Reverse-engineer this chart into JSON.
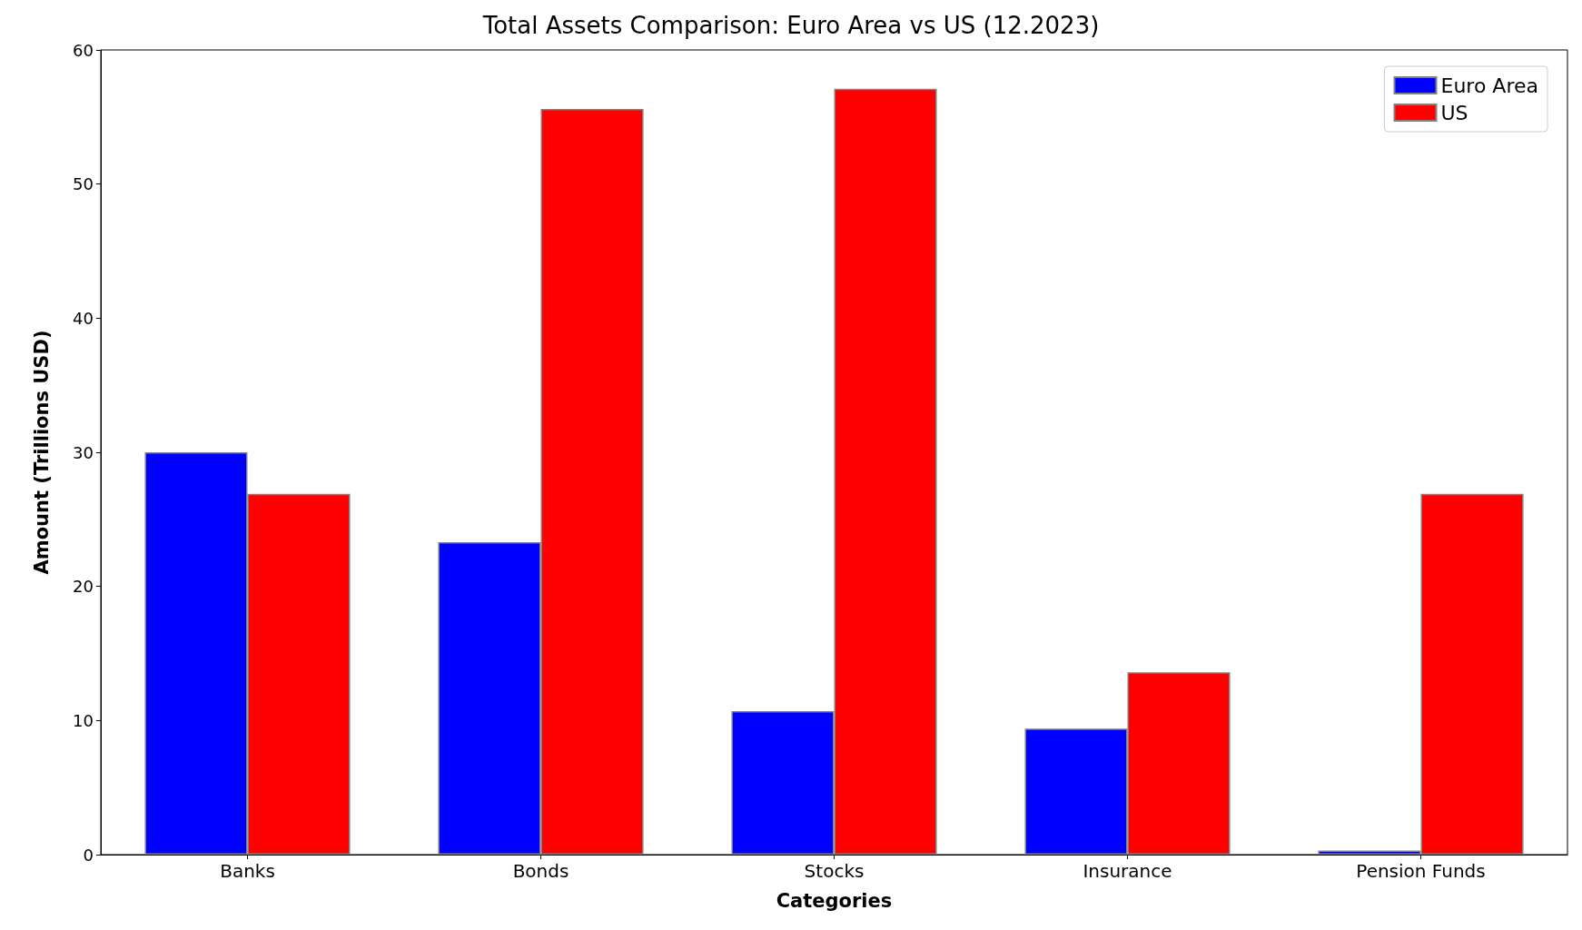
{
  "chart_data": {
    "type": "bar",
    "title": "Total Assets Comparison: Euro Area vs US (12.2023)",
    "xlabel": "Categories",
    "ylabel": "Amount (Trillions USD)",
    "categories": [
      "Banks",
      "Bonds",
      "Stocks",
      "Insurance",
      "Pension Funds"
    ],
    "series": [
      {
        "name": "Euro Area",
        "color": "#0000ff",
        "values": [
          30.0,
          23.3,
          10.7,
          9.4,
          0.3
        ]
      },
      {
        "name": "US",
        "color": "#ff0000",
        "values": [
          26.9,
          55.6,
          57.1,
          13.6,
          26.9
        ]
      }
    ],
    "ylim": [
      0,
      60
    ],
    "yticks": [
      0,
      10,
      20,
      30,
      40,
      50,
      60
    ],
    "grid": false,
    "legend": "top right"
  }
}
